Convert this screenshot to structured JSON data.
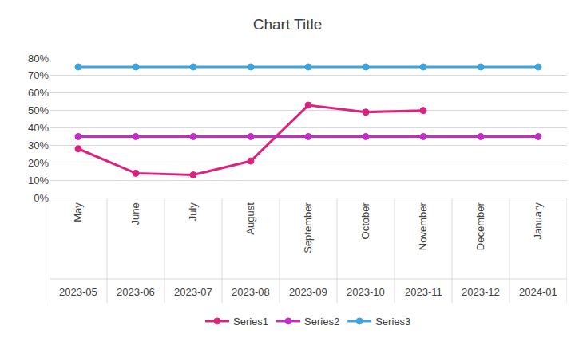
{
  "chart_data": {
    "type": "line",
    "title": "Chart Title",
    "categories": [
      "May",
      "June",
      "July",
      "August",
      "September",
      "October",
      "November",
      "December",
      "January"
    ],
    "category_dates": [
      "2023-05",
      "2023-06",
      "2023-07",
      "2023-08",
      "2023-09",
      "2023-10",
      "2023-11",
      "2023-12",
      "2024-01"
    ],
    "series": [
      {
        "name": "Series1",
        "color": "#d9247f",
        "values": [
          28,
          14,
          13,
          21,
          53,
          49,
          50,
          null,
          null
        ]
      },
      {
        "name": "Series2",
        "color": "#c030c0",
        "values": [
          35,
          35,
          35,
          35,
          35,
          35,
          35,
          35,
          35
        ]
      },
      {
        "name": "Series3",
        "color": "#3fa4da",
        "values": [
          75,
          75,
          75,
          75,
          75,
          75,
          75,
          75,
          75
        ]
      }
    ],
    "ylim": [
      0,
      80
    ],
    "yticks": [
      {
        "value": 0,
        "label": "0%"
      },
      {
        "value": 10,
        "label": "10%"
      },
      {
        "value": 20,
        "label": "20%"
      },
      {
        "value": 30,
        "label": "30%"
      },
      {
        "value": 40,
        "label": "40%"
      },
      {
        "value": 50,
        "label": "50%"
      },
      {
        "value": 60,
        "label": "60%"
      },
      {
        "value": 70,
        "label": "70%"
      },
      {
        "value": 80,
        "label": "80%"
      }
    ],
    "grid": true,
    "legend": "bottom",
    "marker": "circle",
    "line_style": "solid"
  }
}
